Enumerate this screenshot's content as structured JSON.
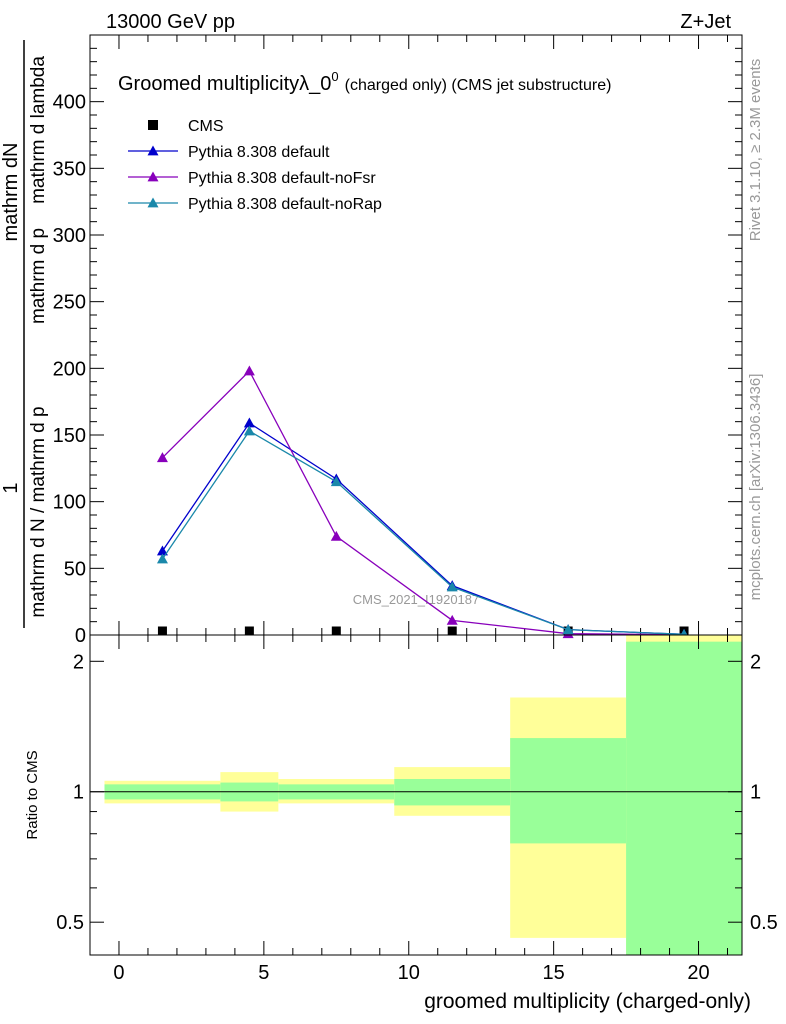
{
  "header": {
    "left": "13000 GeV pp",
    "right": "Z+Jet"
  },
  "side_text": {
    "rivet": "Rivet 3.1.10, ≥ 2.3M events",
    "mcplots": "mcplots.cern.ch [arXiv:1306.3436]"
  },
  "watermark": "CMS_2021_I1920187",
  "chart_data": [
    {
      "type": "line",
      "title_main": "Groomed multiplicityλ_0",
      "title_sup": "0",
      "title_small": "(charged only) (CMS jet substructure)",
      "ylabel_numerator": "mathrm dN",
      "ylabel_one": "1",
      "ylabel_denominator": "mathrm d N / mathrm d p",
      "ylabel_extra": "mathrm d p",
      "ylabel_tail": "mathrm d lambda",
      "ylim": [
        0,
        450
      ],
      "yticks": [
        "0",
        "50",
        "100",
        "150",
        "200",
        "250",
        "300",
        "350",
        "400"
      ],
      "xlim": [
        -1,
        21.5
      ],
      "legend_position": "top-left",
      "series": [
        {
          "name": "CMS",
          "marker": "square",
          "color": "#000000",
          "x": [
            1.5,
            4.5,
            7.5,
            11.5,
            15.5,
            19.5
          ],
          "y": [
            0.5,
            0.5,
            0.5,
            0.5,
            0.2,
            0.5
          ]
        },
        {
          "name": "Pythia 8.308 default",
          "marker": "triangle",
          "color": "#0000cc",
          "x": [
            1.5,
            4.5,
            7.5,
            11.5,
            15.5,
            19.5
          ],
          "y": [
            63,
            159,
            117,
            37,
            4,
            0.5
          ]
        },
        {
          "name": "Pythia 8.308 default-noFsr",
          "marker": "triangle",
          "color": "#8800bb",
          "x": [
            1.5,
            4.5,
            7.5,
            11.5,
            15.5,
            19.5
          ],
          "y": [
            133,
            198,
            74,
            11,
            1,
            0.2
          ]
        },
        {
          "name": "Pythia 8.308 default-noRap",
          "marker": "triangle",
          "color": "#1a88aa",
          "x": [
            1.5,
            4.5,
            7.5,
            11.5,
            15.5,
            19.5
          ],
          "y": [
            57,
            153,
            115,
            36,
            4,
            0.5
          ]
        }
      ]
    },
    {
      "type": "area",
      "ylabel": "Ratio to CMS",
      "xlabel": "groomed multiplicity (charged-only)",
      "log_y": true,
      "ylim": [
        0.42,
        2.3
      ],
      "xlim": [
        -1,
        21.5
      ],
      "xticks": [
        "0",
        "5",
        "10",
        "15",
        "20"
      ],
      "yticks": [
        "0.5",
        "1",
        "2"
      ],
      "bands": [
        {
          "x0": -0.5,
          "x1": 3.5,
          "yellow": [
            0.94,
            1.06
          ],
          "green": [
            0.96,
            1.04
          ]
        },
        {
          "x0": 3.5,
          "x1": 5.5,
          "yellow": [
            0.9,
            1.11
          ],
          "green": [
            0.95,
            1.05
          ]
        },
        {
          "x0": 5.5,
          "x1": 9.5,
          "yellow": [
            0.94,
            1.07
          ],
          "green": [
            0.96,
            1.04
          ]
        },
        {
          "x0": 9.5,
          "x1": 13.5,
          "yellow": [
            0.88,
            1.14
          ],
          "green": [
            0.93,
            1.07
          ]
        },
        {
          "x0": 13.5,
          "x1": 17.5,
          "yellow": [
            0.46,
            1.65
          ],
          "green": [
            0.76,
            1.33
          ]
        },
        {
          "x0": 17.5,
          "x1": 21.5,
          "yellow": [
            0.42,
            2.3
          ],
          "green": [
            0.42,
            2.22
          ]
        }
      ]
    }
  ]
}
